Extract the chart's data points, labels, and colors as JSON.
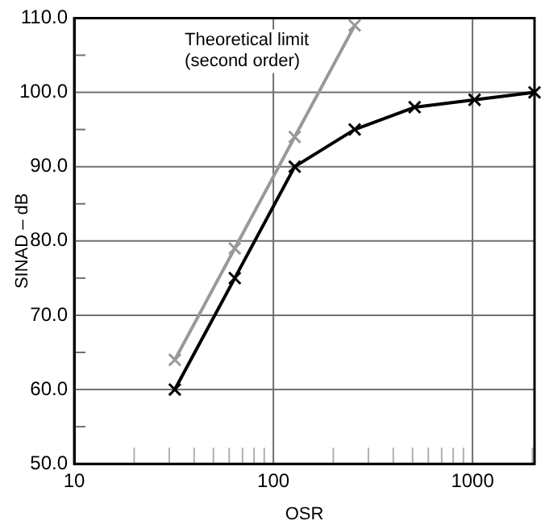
{
  "chart_data": {
    "type": "line",
    "xlabel": "OSR",
    "ylabel": "SINAD – dB",
    "log": "x",
    "xlim": [
      10,
      2048
    ],
    "xticks": [
      10,
      {
        "value": 20,
        "label": null
      },
      {
        "value": 30,
        "label": null
      },
      {
        "value": 40,
        "label": null
      },
      {
        "value": 50,
        "label": null
      },
      {
        "value": 60,
        "label": null
      },
      {
        "value": 70,
        "label": null
      },
      {
        "value": 80,
        "label": null
      },
      {
        "value": 90,
        "label": null
      },
      100,
      {
        "value": 200,
        "label": null
      },
      {
        "value": 300,
        "label": null
      },
      {
        "value": 400,
        "label": null
      },
      {
        "value": 500,
        "label": null
      },
      {
        "value": 600,
        "label": null
      },
      {
        "value": 700,
        "label": null
      },
      {
        "value": 800,
        "label": null
      },
      {
        "value": 900,
        "label": null
      },
      1000,
      {
        "value": 2000,
        "label": null
      }
    ],
    "ylim": [
      50,
      110
    ],
    "yticks": [
      {
        "value": 50,
        "label": "50.0"
      },
      {
        "value": 55,
        "label": null
      },
      {
        "value": 60,
        "label": "60.0"
      },
      {
        "value": 65,
        "label": null
      },
      {
        "value": 70,
        "label": "70.0"
      },
      {
        "value": 75,
        "label": null
      },
      {
        "value": 80,
        "label": "80.0"
      },
      {
        "value": 85,
        "label": null
      },
      {
        "value": 90,
        "label": "90.0"
      },
      {
        "value": 95,
        "label": null
      },
      {
        "value": 100,
        "label": "100.0"
      },
      {
        "value": 105,
        "label": null
      },
      {
        "value": 110,
        "label": "110.0"
      }
    ],
    "grid": true,
    "legend": false,
    "marker": "cross",
    "line_style": "solid",
    "series": [
      {
        "color": "#999999",
        "x": [
          32,
          64,
          128,
          256
        ],
        "values": [
          64,
          79,
          94,
          109
        ]
      },
      {
        "color": "#000000",
        "x": [
          32,
          64,
          128,
          256,
          512,
          1024,
          2048
        ],
        "values": [
          60,
          75,
          90,
          95,
          98,
          99,
          100
        ]
      }
    ],
    "annotations": [
      "Theoretical limit\n(second order)"
    ]
  }
}
